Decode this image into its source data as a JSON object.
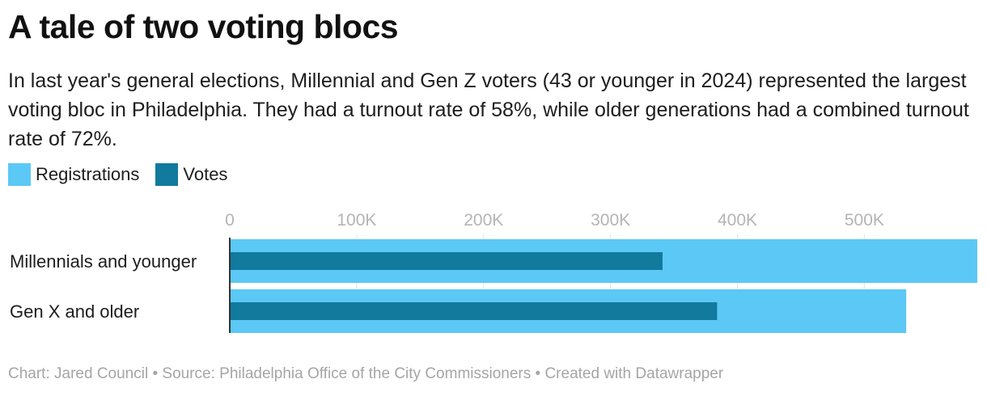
{
  "title": "A tale of two voting blocs",
  "subtitle": "In last year's general elections, Millennial and Gen Z voters (43 or younger in 2024) represented the largest voting bloc in Philadelphia. They had a turnout rate of 58%, while older generations had a combined turnout rate of 72%.",
  "footer": "Chart: Jared Council • Source: Philadelphia Office of the City Commissioners • Created with Datawrapper",
  "colors": {
    "registrations": "#5bc8f5",
    "votes": "#127a9d",
    "grid": "#e2e2e2",
    "axis": "#333333"
  },
  "chart_data": {
    "type": "bar",
    "orientation": "horizontal",
    "categories": [
      "Millennials and younger",
      "Gen X and older"
    ],
    "series": [
      {
        "name": "Registrations",
        "values": [
          589000,
          533000
        ]
      },
      {
        "name": "Votes",
        "values": [
          341000,
          384000
        ]
      }
    ],
    "xlim": [
      0,
      589000
    ],
    "ticks": [
      0,
      100000,
      200000,
      300000,
      400000,
      500000
    ],
    "tick_labels": [
      "0",
      "100K",
      "200K",
      "300K",
      "400K",
      "500K"
    ],
    "legend": [
      "Registrations",
      "Votes"
    ],
    "legend_position": "top-left"
  }
}
